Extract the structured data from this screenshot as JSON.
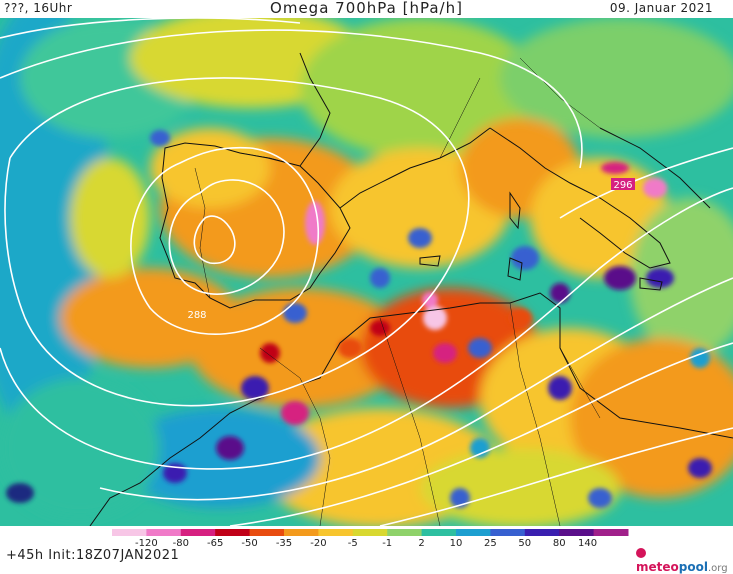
{
  "header": {
    "left": "???, 16Uhr",
    "title": "Omega 700hPa [hPa/h]",
    "right": "09. Januar 2021"
  },
  "map": {
    "contour_labels": [
      {
        "text": "288",
        "color": "#ffffff"
      },
      {
        "text": "296",
        "color": "#ffffff"
      }
    ]
  },
  "colorbar": {
    "labels": [
      "-120",
      "-80",
      "-65",
      "-50",
      "-35",
      "-20",
      "-5",
      "-1",
      "2",
      "10",
      "25",
      "50",
      "80",
      "140"
    ],
    "colors": [
      "#f7c6e6",
      "#f07ac8",
      "#d62080",
      "#c00018",
      "#e84c10",
      "#f39a1c",
      "#f7c52e",
      "#d8d830",
      "#8fd26a",
      "#2dbfa0",
      "#1d9fd0",
      "#3760d0",
      "#3a1fb0",
      "#5a0f8a",
      "#a0208a"
    ]
  },
  "footer": {
    "left": "+45h Init:18Z07JAN2021",
    "logo_part1": "meteo",
    "logo_part2": "pool",
    "logo_part3": ".org"
  }
}
